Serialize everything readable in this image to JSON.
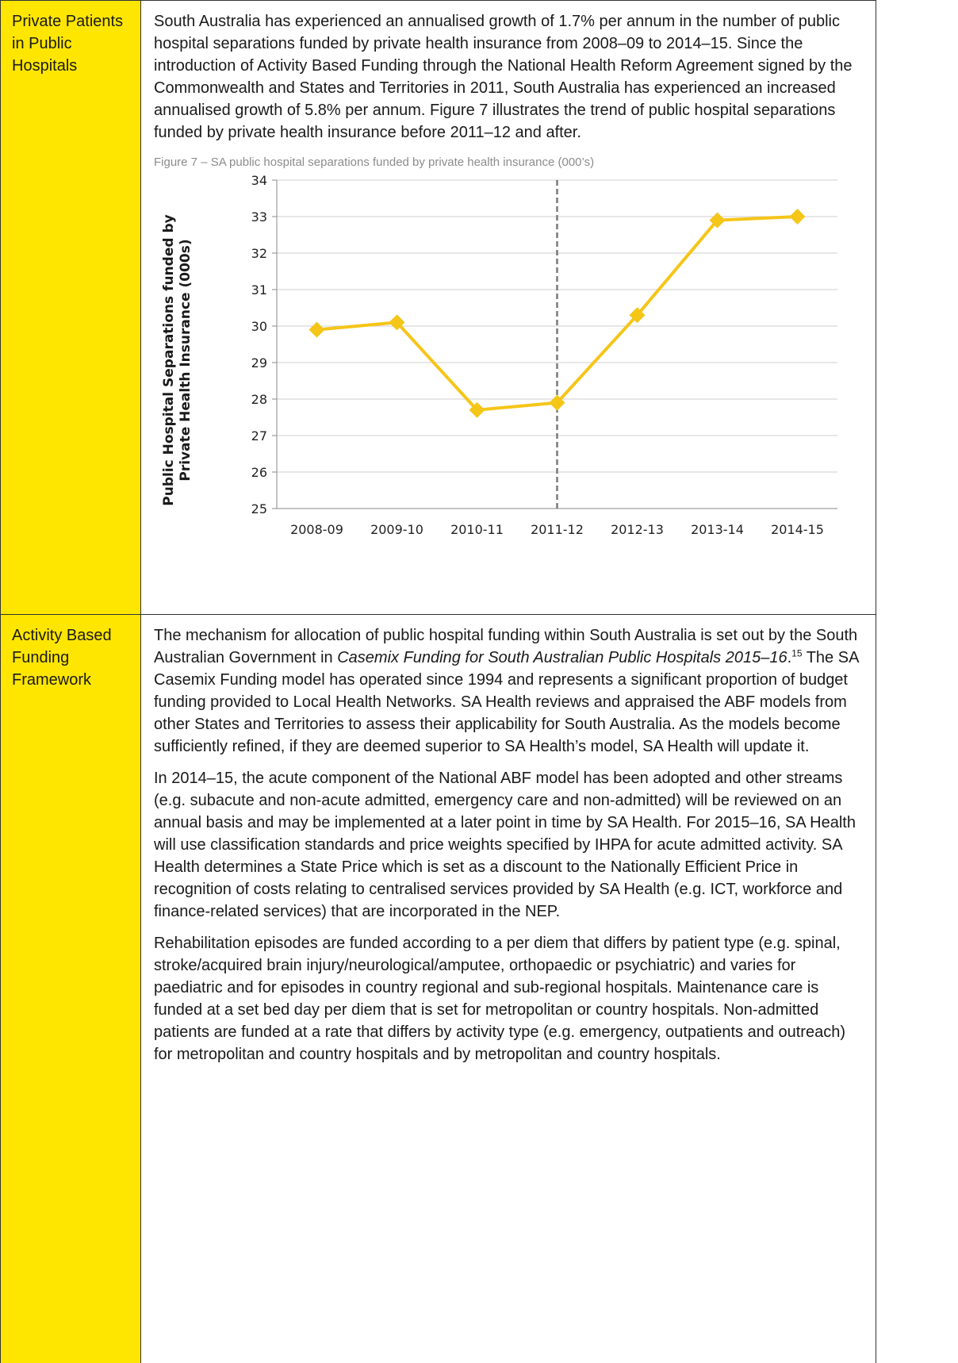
{
  "sections": [
    {
      "label": "Private Patients in Public Hospitals",
      "paragraphs": [
        "South Australia has experienced an annualised growth of 1.7% per annum in the number of public hospital separations funded by private health insurance from 2008–09 to 2014–15. Since the introduction of Activity Based Funding through the National Health Reform Agreement signed by the Commonwealth and States and Territories in 2011, South Australia has experienced an increased annualised growth of 5.8% per annum. Figure 7 illustrates the trend of public hospital separations funded by private health insurance before 2011–12 and after."
      ],
      "figure_caption": "Figure 7 – SA public hospital separations funded by private health insurance (000’s)"
    },
    {
      "label": "Activity Based Funding Framework",
      "p1_before": "The mechanism for allocation of public hospital funding within South Australia is set out by the South Australian Government in ",
      "p1_italic": "Casemix Funding for South Australian Public Hospitals 2015–16",
      "p1_mid": ".",
      "p1_sup": "15",
      "p1_after": " The SA Casemix Funding model has operated since 1994 and represents a significant proportion of budget funding provided to Local Health Networks. SA Health reviews and appraised the ABF models from other States and Territories to assess their applicability for South Australia. As the models become sufficiently refined, if they are deemed superior to SA Health’s model, SA Health will update it.",
      "p2": "In 2014–15, the acute component of the National ABF model has been adopted and other streams (e.g. subacute and non-acute admitted, emergency care and non-admitted) will be reviewed on an annual basis and may be implemented at a later point in time by SA Health. For 2015–16, SA Health will use classification standards and price weights specified by IHPA for acute admitted activity. SA Health determines a State Price which is set as a discount to the Nationally Efficient Price in recognition of costs relating to centralised services provided by SA Health (e.g. ICT, workforce and finance-related services) that are incorporated in the NEP.",
      "p3": "Rehabilitation episodes are funded according to a per diem that differs by patient type (e.g. spinal, stroke/acquired brain injury/neurological/amputee, orthopaedic or psychiatric) and varies for paediatric and for episodes in country regional and sub-regional hospitals. Maintenance care is funded at a set bed day per diem that is set for metropolitan or country hospitals. Non-admitted patients are funded at a rate that differs by activity type (e.g. emergency, outpatients and outreach) for metropolitan and country hospitals and by metropolitan and country hospitals."
    }
  ],
  "chart_data": {
    "type": "line",
    "categories": [
      "2008-09",
      "2009-10",
      "2010-11",
      "2011-12",
      "2012-13",
      "2013-14",
      "2014-15"
    ],
    "values": [
      29.9,
      30.1,
      27.7,
      27.9,
      30.3,
      32.9,
      33.0
    ],
    "ylabel_line1": "Public Hospital Separations funded by",
    "ylabel_line2": "Private Health Insurance (000s)",
    "ylim": [
      25,
      34
    ],
    "yticks": [
      25,
      26,
      27,
      28,
      29,
      30,
      31,
      32,
      33,
      34
    ],
    "grid": true,
    "marker": "diamond",
    "line_color": "#f5c518",
    "reference_line_category": "2011-12",
    "legend": "none"
  }
}
